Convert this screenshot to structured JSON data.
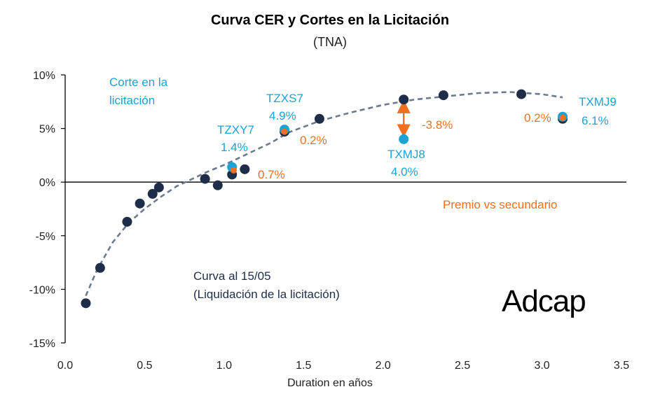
{
  "chart_data": {
    "type": "scatter",
    "title": "Curva CER y Cortes en la Licitación",
    "subtitle": "(TNA)",
    "xlabel": "Duration en años",
    "ylabel": "",
    "xlim": [
      0,
      3.5
    ],
    "ylim": [
      -15,
      10
    ],
    "x_ticks": [
      "0.0",
      "0.5",
      "1.0",
      "1.5",
      "2.0",
      "2.5",
      "3.0",
      "3.5"
    ],
    "y_ticks": [
      "10%",
      "5%",
      "0%",
      "-5%",
      "-10%",
      "-15%"
    ],
    "colors": {
      "curve": "#1e2d48",
      "auction": "#1aa3d6",
      "premium": "#f07020",
      "trend": "#6b7a90"
    },
    "series": [
      {
        "name": "Curva al 15/05",
        "points": [
          {
            "x": 0.13,
            "y": -11.3
          },
          {
            "x": 0.22,
            "y": -8.0
          },
          {
            "x": 0.39,
            "y": -3.7
          },
          {
            "x": 0.47,
            "y": -2.0
          },
          {
            "x": 0.55,
            "y": -1.1
          },
          {
            "x": 0.59,
            "y": -0.5
          },
          {
            "x": 0.88,
            "y": 0.3
          },
          {
            "x": 0.96,
            "y": -0.3
          },
          {
            "x": 1.05,
            "y": 0.7
          },
          {
            "x": 1.13,
            "y": 1.2
          },
          {
            "x": 1.38,
            "y": 4.7
          },
          {
            "x": 1.6,
            "y": 5.9
          },
          {
            "x": 2.13,
            "y": 7.7
          },
          {
            "x": 2.38,
            "y": 8.1
          },
          {
            "x": 2.87,
            "y": 8.2
          },
          {
            "x": 3.13,
            "y": 5.9
          }
        ]
      },
      {
        "name": "Corte en la licitación",
        "points": [
          {
            "x": 1.05,
            "y": 1.4
          },
          {
            "x": 1.38,
            "y": 4.9
          },
          {
            "x": 2.13,
            "y": 4.0
          },
          {
            "x": 3.13,
            "y": 6.1
          }
        ]
      },
      {
        "name": "Premio vs secundario",
        "points": [
          {
            "x": 1.06,
            "y": 1.1
          },
          {
            "x": 1.38,
            "y": 4.7
          },
          {
            "x": 3.13,
            "y": 6.0
          }
        ]
      }
    ],
    "trend_line": [
      {
        "x": 0.13,
        "y": -10.6
      },
      {
        "x": 0.2,
        "y": -8.2
      },
      {
        "x": 0.3,
        "y": -5.6
      },
      {
        "x": 0.4,
        "y": -3.8
      },
      {
        "x": 0.5,
        "y": -2.5
      },
      {
        "x": 0.6,
        "y": -1.4
      },
      {
        "x": 0.7,
        "y": -0.4
      },
      {
        "x": 0.8,
        "y": 0.3
      },
      {
        "x": 0.9,
        "y": 1.0
      },
      {
        "x": 1.0,
        "y": 1.6
      },
      {
        "x": 1.1,
        "y": 2.3
      },
      {
        "x": 1.2,
        "y": 3.0
      },
      {
        "x": 1.3,
        "y": 3.7
      },
      {
        "x": 1.4,
        "y": 4.6
      },
      {
        "x": 1.6,
        "y": 5.7
      },
      {
        "x": 1.8,
        "y": 6.5
      },
      {
        "x": 2.0,
        "y": 7.2
      },
      {
        "x": 2.2,
        "y": 7.7
      },
      {
        "x": 2.4,
        "y": 8.0
      },
      {
        "x": 2.6,
        "y": 8.3
      },
      {
        "x": 2.8,
        "y": 8.4
      },
      {
        "x": 3.0,
        "y": 8.2
      },
      {
        "x": 3.13,
        "y": 7.9
      }
    ],
    "annotations": {
      "legend_auction": [
        "Corte en la",
        "licitación"
      ],
      "legend_curve": [
        "Curva al 15/05",
        "(Liquidación de la licitación)"
      ],
      "legend_premium": "Premio vs secundario",
      "tzxy7_name": "TZXY7",
      "tzxy7_value": "1.4%",
      "tzxy7_premium": "0.7%",
      "tzxs7_name": "TZXS7",
      "tzxs7_value": "4.9%",
      "tzxs7_premium": "0.2%",
      "txmj8_name": "TXMJ8",
      "txmj8_value": "4.0%",
      "txmj8_premium": "-3.8%",
      "txmj9_name": "TXMJ9",
      "txmj9_value": "6.1%",
      "txmj9_premium": "0.2%"
    },
    "arrow": {
      "x": 2.13,
      "y_from": 7.7,
      "y_to": 4.0
    }
  },
  "logo_text": "Adcap"
}
